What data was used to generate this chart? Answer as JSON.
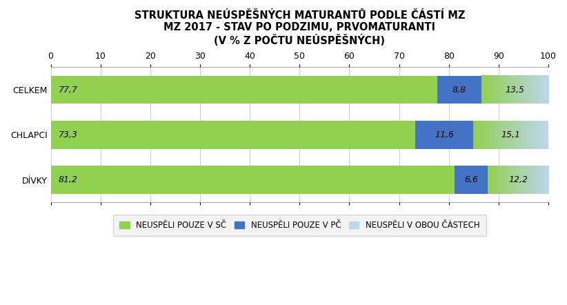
{
  "title_line1": "STRUKTURA NEÚSPĚŠNÝCH MATURANTŮ PODLE ČÁSTÍ MZ",
  "title_line2": "MZ 2017 - STAV PO PODZIMU, PRVOMATURANTI",
  "title_line3": "(V % Z POČTU NEÚSPĚŠNÝCH)",
  "categories": [
    "CELKEM",
    "CHLAPCI",
    "DÍVKY"
  ],
  "sc_values": [
    77.7,
    73.3,
    81.2
  ],
  "pc_values": [
    8.8,
    11.6,
    6.6
  ],
  "obou_values": [
    13.5,
    15.1,
    12.2
  ],
  "sc_color": "#92D050",
  "pc_color": "#4472C4",
  "obou_color_start": "#92D050",
  "obou_color_end": "#BDD7EE",
  "sc_label": "NEUSPĚLI POUZE V SČ",
  "pc_label": "NEUSPĚLI POUZE V PČ",
  "obou_label": "NEUSPĚLI V OBOU ČÁSTECH",
  "obou_legend_color": "#BDD7EE",
  "xlim": [
    0,
    100
  ],
  "xticks": [
    0,
    10,
    20,
    30,
    40,
    50,
    60,
    70,
    80,
    90,
    100
  ],
  "background_color": "#FFFFFF",
  "title_fontsize": 10.5,
  "label_fontsize": 9,
  "bar_label_fontsize": 9,
  "legend_fontsize": 8.5,
  "bar_height": 0.62,
  "figsize": [
    8.22,
    4.42
  ]
}
